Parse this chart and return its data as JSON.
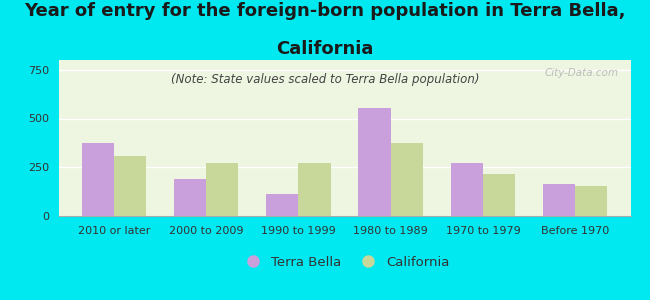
{
  "title_line1": "Year of entry for the foreign-born population in Terra Bella,",
  "title_line2": "California",
  "subtitle": "(Note: State values scaled to Terra Bella population)",
  "categories": [
    "2010 or later",
    "2000 to 2009",
    "1990 to 1999",
    "1980 to 1989",
    "1970 to 1979",
    "Before 1970"
  ],
  "terra_bella": [
    375,
    190,
    115,
    555,
    270,
    165
  ],
  "california": [
    310,
    270,
    270,
    375,
    215,
    155
  ],
  "terra_bella_color": "#c9a0dc",
  "california_color": "#c8d89a",
  "background_color": "#00e8f0",
  "plot_bg": "#eef5e0",
  "ylim": [
    0,
    800
  ],
  "yticks": [
    0,
    250,
    500,
    750
  ],
  "bar_width": 0.35,
  "legend_terra_bella": "Terra Bella",
  "legend_california": "California",
  "watermark": "City-Data.com",
  "title_fontsize": 13,
  "subtitle_fontsize": 8.5,
  "tick_fontsize": 8,
  "legend_fontsize": 9.5
}
